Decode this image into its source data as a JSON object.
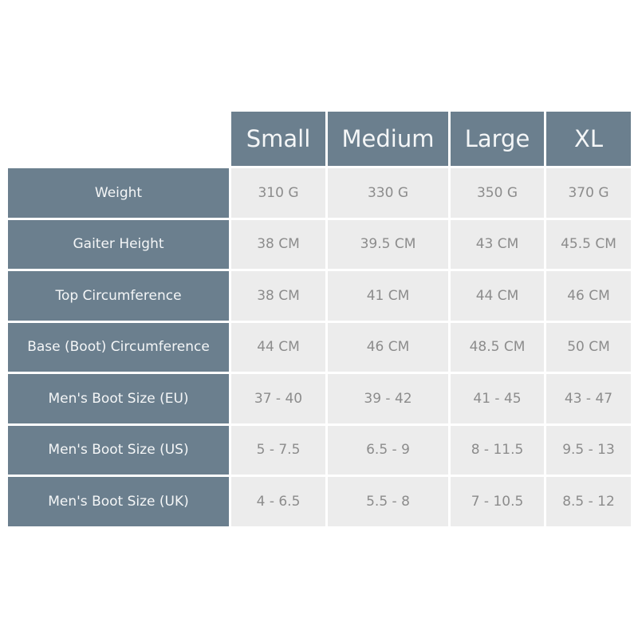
{
  "columns": [
    "Small",
    "Medium",
    "Large",
    "XL"
  ],
  "rows": [
    {
      "label": "Weight",
      "values": [
        "310 G",
        "330 G",
        "350 G",
        "370 G"
      ]
    },
    {
      "label": "Gaiter Height",
      "values": [
        "38 CM",
        "39.5 CM",
        "43 CM",
        "45.5 CM"
      ]
    },
    {
      "label": "Top Circumference",
      "values": [
        "38 CM",
        "41 CM",
        "44 CM",
        "46 CM"
      ]
    },
    {
      "label": "Base (Boot) Circumference",
      "values": [
        "44 CM",
        "46 CM",
        "48.5 CM",
        "50 CM"
      ]
    },
    {
      "label": "Men's Boot Size (EU)",
      "values": [
        "37 - 40",
        "39 - 42",
        "41 - 45",
        "43 - 47"
      ]
    },
    {
      "label": "Men's Boot Size (US)",
      "values": [
        "5 - 7.5",
        "6.5 - 9",
        "8 - 11.5",
        "9.5 - 13"
      ]
    },
    {
      "label": "Men's Boot Size (UK)",
      "values": [
        "4 - 6.5",
        "5.5 - 8",
        "7 - 10.5",
        "8.5 - 12"
      ]
    }
  ],
  "colors": {
    "header": "#6b7f8e",
    "cell": "#ececec",
    "cell_text": "#8c8c8c"
  }
}
